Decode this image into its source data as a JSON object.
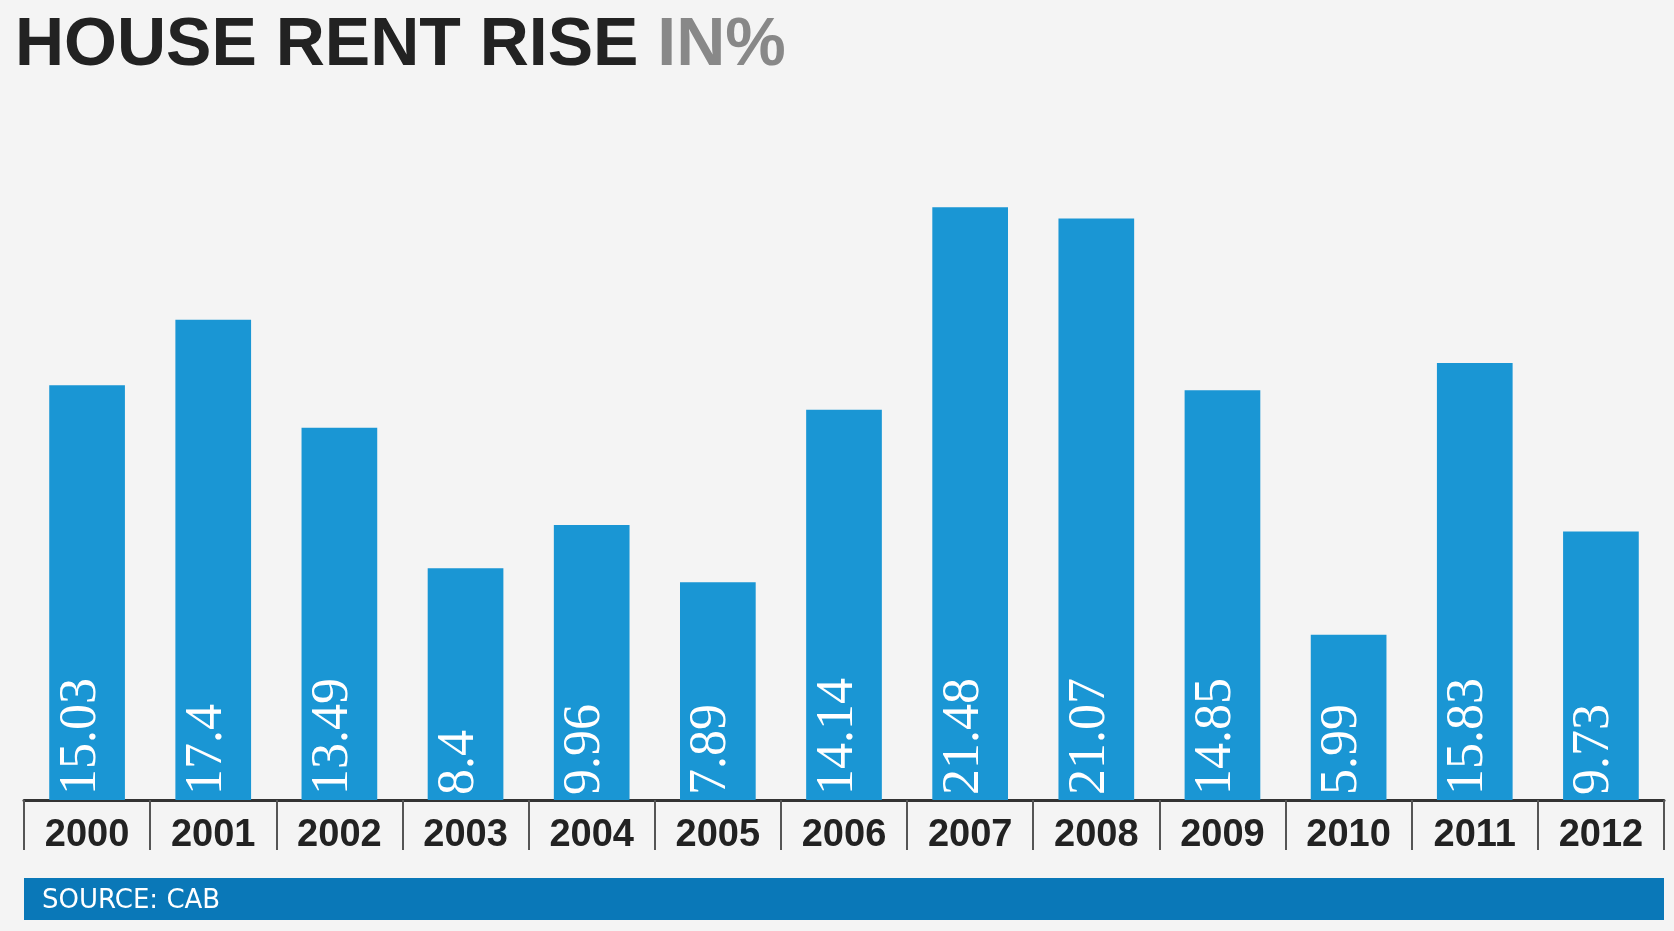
{
  "chart_data": {
    "type": "bar",
    "title": "HOUSE RENT RISE IN%",
    "categories": [
      "2000",
      "2001",
      "2002",
      "2003",
      "2004",
      "2005",
      "2006",
      "2007",
      "2008",
      "2009",
      "2010",
      "2011",
      "2012"
    ],
    "values": [
      15.03,
      17.4,
      13.49,
      8.4,
      9.96,
      7.89,
      14.14,
      21.48,
      21.07,
      14.85,
      5.99,
      15.83,
      9.73
    ],
    "color": "#1a96d4",
    "data_labels": true,
    "tick_labels": "x",
    "annotations": [
      "SOURCE: CAB"
    ]
  }
}
